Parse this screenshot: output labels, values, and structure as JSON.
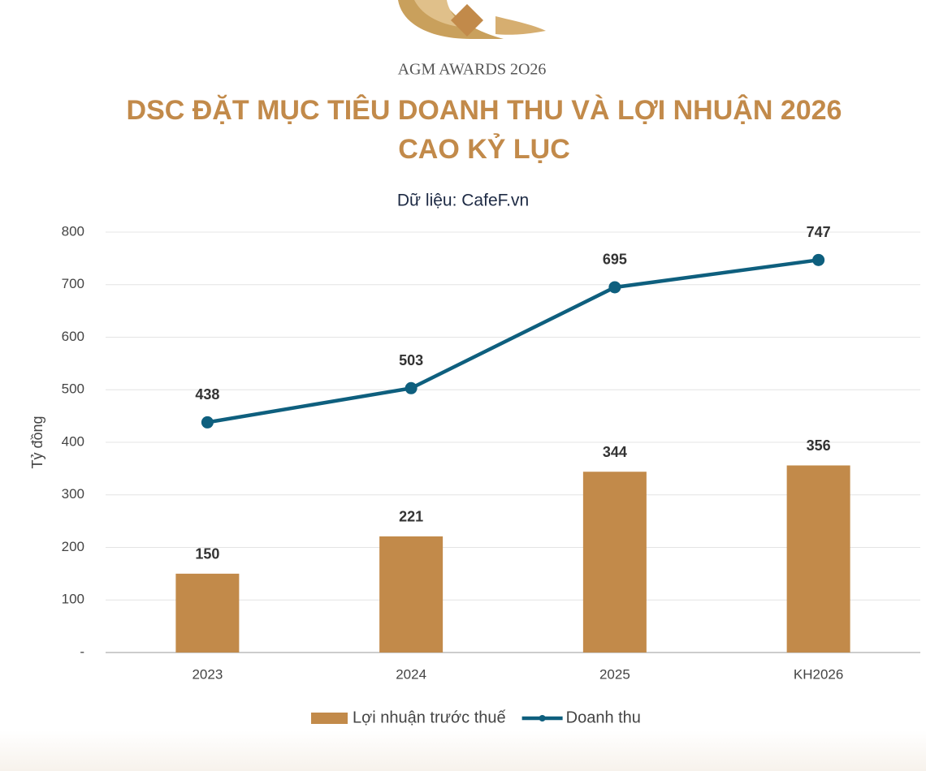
{
  "logo": {
    "text": "AGM AWARDS 2O26"
  },
  "chart_data": {
    "type": "bar",
    "title": "DSC ĐẶT MỤC TIÊU DOANH THU VÀ LỢI NHUẬN 2026 CAO KỶ LỤC",
    "subtitle": "Dữ liệu: CafeF.vn",
    "y_label": "Tỷ đồng",
    "categories": [
      "2023",
      "2024",
      "2025",
      "KH2026"
    ],
    "series": [
      {
        "name": "Lợi nhuận trước thuế",
        "type": "bar",
        "color": "#c28a4a",
        "values": [
          150,
          221,
          344,
          356
        ]
      },
      {
        "name": "Doanh thu",
        "type": "line",
        "color": "#0e5f7e",
        "values": [
          438,
          503,
          695,
          747
        ]
      }
    ],
    "ylim": [
      0,
      800
    ],
    "yticks": [
      {
        "value": 0,
        "label": "-"
      },
      100,
      200,
      300,
      400,
      500,
      600,
      700,
      800
    ],
    "grid": true,
    "legend": "bottom"
  }
}
